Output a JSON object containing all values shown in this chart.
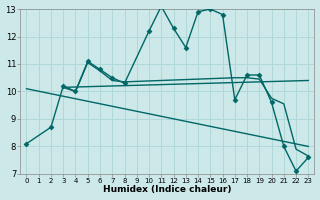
{
  "xlabel": "Humidex (Indice chaleur)",
  "xlim": [
    -0.5,
    23.5
  ],
  "ylim": [
    7,
    13
  ],
  "yticks": [
    7,
    8,
    9,
    10,
    11,
    12,
    13
  ],
  "xticks": [
    0,
    1,
    2,
    3,
    4,
    5,
    6,
    7,
    8,
    9,
    10,
    11,
    12,
    13,
    14,
    15,
    16,
    17,
    18,
    19,
    20,
    21,
    22,
    23
  ],
  "bg_color": "#cce8e8",
  "line_color": "#006666",
  "grid_color": "#b0d8d8",
  "series": [
    {
      "x": [
        0,
        2,
        3,
        4,
        5,
        6,
        7,
        8,
        10,
        11,
        12,
        13,
        14,
        15,
        16,
        17,
        18,
        19,
        20,
        21,
        22,
        23
      ],
      "y": [
        8.1,
        8.7,
        10.2,
        10.0,
        11.1,
        10.8,
        10.5,
        10.3,
        12.2,
        13.1,
        12.3,
        11.6,
        12.9,
        13.0,
        12.8,
        9.7,
        10.6,
        10.6,
        9.6,
        8.0,
        7.1,
        7.6
      ],
      "marker": "D",
      "markersize": 2.5,
      "linewidth": 1.0
    },
    {
      "x": [
        3,
        4,
        5,
        6,
        7,
        8,
        17,
        18,
        19,
        20,
        21,
        22,
        23
      ],
      "y": [
        10.15,
        10.0,
        11.05,
        10.75,
        10.4,
        10.35,
        10.5,
        10.5,
        10.45,
        9.75,
        9.55,
        7.9,
        7.65
      ],
      "marker": null,
      "linewidth": 1.0
    },
    {
      "x": [
        3,
        23
      ],
      "y": [
        10.15,
        10.4
      ],
      "marker": null,
      "linewidth": 1.0
    },
    {
      "x": [
        0,
        23
      ],
      "y": [
        10.1,
        8.0
      ],
      "marker": null,
      "linewidth": 1.0
    }
  ]
}
